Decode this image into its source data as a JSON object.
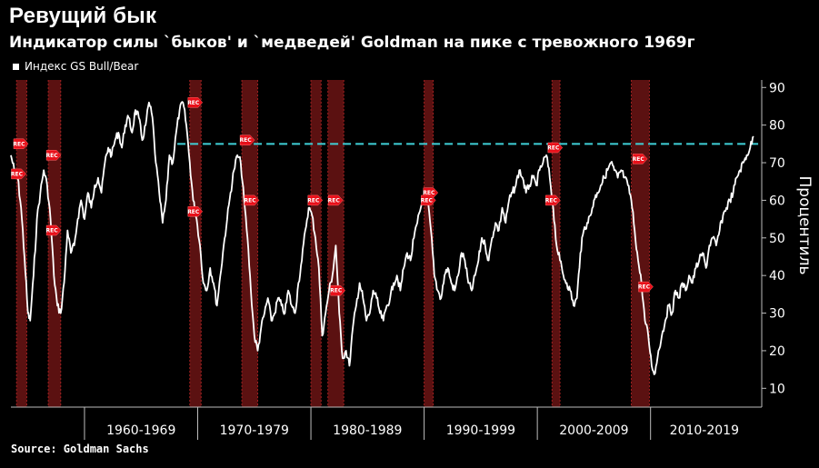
{
  "header": {
    "title": "Ревущий бык",
    "subtitle": "Индикатор силы `быков' и `медведей' Goldman на пике с тревожного 1969г"
  },
  "legend": {
    "label": "Индекс GS Bull/Bear"
  },
  "source": "Source: Goldman Sachs",
  "colors": {
    "background": "#000000",
    "series": "#ffffff",
    "recession_band": "#6b1414",
    "recession_marker": "#e8101a",
    "threshold_line": "#3fd1d8"
  },
  "chart_data": {
    "type": "line",
    "ylabel": "Процентиль",
    "ylim": [
      5,
      92
    ],
    "yticks": [
      10,
      20,
      30,
      40,
      50,
      60,
      70,
      80,
      90
    ],
    "xlim": [
      1953.0,
      2019.0
    ],
    "decades": [
      {
        "label": "1960-1969",
        "from": 1959.5,
        "to": 1969.5
      },
      {
        "label": "1970-1979",
        "from": 1969.5,
        "to": 1979.5
      },
      {
        "label": "1980-1989",
        "from": 1979.5,
        "to": 1989.5
      },
      {
        "label": "1990-1999",
        "from": 1989.5,
        "to": 1999.5
      },
      {
        "label": "2000-2009",
        "from": 1999.5,
        "to": 2009.5
      },
      {
        "label": "2010-2019",
        "from": 2009.5,
        "to": 2019.0
      }
    ],
    "threshold": {
      "value": 75,
      "x_start": 1967.7
    },
    "recessions": [
      {
        "start": 1953.5,
        "end": 1954.4
      },
      {
        "start": 1956.3,
        "end": 1957.4
      },
      {
        "start": 1968.8,
        "end": 1969.8
      },
      {
        "start": 1973.4,
        "end": 1974.8
      },
      {
        "start": 1979.5,
        "end": 1980.4
      },
      {
        "start": 1981.0,
        "end": 1982.4
      },
      {
        "start": 1989.5,
        "end": 1990.3
      },
      {
        "start": 2000.8,
        "end": 2001.5
      },
      {
        "start": 2007.8,
        "end": 2009.4
      }
    ],
    "rec_markers": [
      {
        "label": "REC",
        "x": 1953.8,
        "y": 75
      },
      {
        "label": "REC",
        "x": 1953.6,
        "y": 67
      },
      {
        "label": "REC",
        "x": 1956.7,
        "y": 72
      },
      {
        "label": "REC",
        "x": 1956.7,
        "y": 52
      },
      {
        "label": "REC",
        "x": 1969.2,
        "y": 86
      },
      {
        "label": "REC",
        "x": 1969.2,
        "y": 57
      },
      {
        "label": "REC",
        "x": 1973.8,
        "y": 76
      },
      {
        "label": "REC",
        "x": 1974.2,
        "y": 60
      },
      {
        "label": "REC",
        "x": 1979.8,
        "y": 60
      },
      {
        "label": "REC",
        "x": 1981.6,
        "y": 60
      },
      {
        "label": "REC",
        "x": 1981.8,
        "y": 36
      },
      {
        "label": "REC",
        "x": 1990.0,
        "y": 62
      },
      {
        "label": "REC",
        "x": 1989.8,
        "y": 60
      },
      {
        "label": "REC",
        "x": 2001.0,
        "y": 74
      },
      {
        "label": "REC",
        "x": 2000.8,
        "y": 60
      },
      {
        "label": "REC",
        "x": 2008.5,
        "y": 71
      },
      {
        "label": "REC",
        "x": 2009.0,
        "y": 37
      }
    ],
    "series": [
      {
        "name": "Индекс GS Bull/Bear",
        "x": [
          1953.0,
          1953.3,
          1953.6,
          1953.9,
          1954.2,
          1954.5,
          1954.7,
          1955.0,
          1955.3,
          1955.6,
          1955.9,
          1956.2,
          1956.5,
          1956.8,
          1957.1,
          1957.4,
          1957.7,
          1958.0,
          1958.3,
          1958.6,
          1958.9,
          1959.2,
          1959.5,
          1959.8,
          1960.1,
          1960.4,
          1960.7,
          1961.0,
          1961.3,
          1961.6,
          1961.9,
          1962.2,
          1962.5,
          1962.8,
          1963.1,
          1963.4,
          1963.7,
          1964.0,
          1964.3,
          1964.6,
          1964.9,
          1965.2,
          1965.5,
          1965.8,
          1966.1,
          1966.4,
          1966.7,
          1967.0,
          1967.3,
          1967.6,
          1967.9,
          1968.2,
          1968.5,
          1968.8,
          1969.1,
          1969.4,
          1969.7,
          1970.0,
          1970.3,
          1970.6,
          1970.9,
          1971.2,
          1971.5,
          1971.8,
          1972.1,
          1972.4,
          1972.7,
          1973.0,
          1973.3,
          1973.6,
          1973.9,
          1974.2,
          1974.5,
          1974.8,
          1975.1,
          1975.4,
          1975.7,
          1976.0,
          1976.3,
          1976.6,
          1976.9,
          1977.2,
          1977.5,
          1977.8,
          1978.1,
          1978.4,
          1978.7,
          1979.0,
          1979.3,
          1979.6,
          1979.9,
          1980.2,
          1980.5,
          1980.8,
          1981.1,
          1981.4,
          1981.7,
          1982.0,
          1982.3,
          1982.6,
          1982.9,
          1983.2,
          1983.5,
          1983.8,
          1984.1,
          1984.4,
          1984.7,
          1985.0,
          1985.3,
          1985.6,
          1985.9,
          1986.2,
          1986.5,
          1986.8,
          1987.1,
          1987.4,
          1987.7,
          1988.0,
          1988.3,
          1988.6,
          1988.9,
          1989.2,
          1989.5,
          1989.8,
          1990.1,
          1990.4,
          1990.7,
          1991.0,
          1991.3,
          1991.6,
          1991.9,
          1992.2,
          1992.5,
          1992.8,
          1993.1,
          1993.4,
          1993.7,
          1994.0,
          1994.3,
          1994.6,
          1994.9,
          1995.2,
          1995.5,
          1995.8,
          1996.1,
          1996.4,
          1996.7,
          1997.0,
          1997.3,
          1997.6,
          1997.9,
          1998.2,
          1998.5,
          1998.8,
          1999.1,
          1999.4,
          1999.7,
          2000.0,
          2000.3,
          2000.6,
          2000.9,
          2001.2,
          2001.5,
          2001.8,
          2002.1,
          2002.4,
          2002.7,
          2003.0,
          2003.3,
          2003.6,
          2003.9,
          2004.2,
          2004.5,
          2004.8,
          2005.1,
          2005.4,
          2005.7,
          2006.0,
          2006.3,
          2006.6,
          2006.9,
          2007.2,
          2007.5,
          2007.8,
          2008.1,
          2008.4,
          2008.7,
          2009.0,
          2009.3,
          2009.6,
          2009.9,
          2010.2,
          2010.5,
          2010.8,
          2011.1,
          2011.4,
          2011.7,
          2012.0,
          2012.3,
          2012.6,
          2012.9,
          2013.2,
          2013.5,
          2013.8,
          2014.1,
          2014.4,
          2014.7,
          2015.0,
          2015.3,
          2015.6,
          2015.9,
          2016.2,
          2016.5,
          2016.8,
          2017.1,
          2017.4,
          2017.7,
          2018.0,
          2018.3,
          2018.6
        ],
        "values": [
          72,
          68,
          66,
          58,
          45,
          30,
          28,
          40,
          55,
          62,
          68,
          64,
          55,
          40,
          32,
          30,
          38,
          52,
          46,
          48,
          55,
          60,
          55,
          62,
          58,
          64,
          66,
          62,
          70,
          74,
          72,
          76,
          78,
          74,
          80,
          82,
          78,
          84,
          82,
          76,
          80,
          86,
          82,
          70,
          62,
          54,
          60,
          72,
          70,
          78,
          84,
          86,
          80,
          70,
          60,
          55,
          48,
          38,
          36,
          42,
          38,
          32,
          40,
          48,
          55,
          62,
          68,
          72,
          70,
          60,
          50,
          36,
          24,
          20,
          26,
          30,
          34,
          28,
          30,
          34,
          32,
          30,
          36,
          32,
          30,
          38,
          44,
          52,
          58,
          56,
          50,
          42,
          24,
          30,
          36,
          40,
          48,
          30,
          18,
          20,
          16,
          26,
          32,
          38,
          34,
          28,
          30,
          36,
          34,
          30,
          28,
          32,
          34,
          38,
          40,
          36,
          42,
          46,
          44,
          50,
          54,
          58,
          62,
          60,
          52,
          40,
          36,
          34,
          40,
          42,
          38,
          36,
          40,
          46,
          44,
          38,
          36,
          40,
          44,
          50,
          48,
          44,
          50,
          54,
          52,
          58,
          54,
          60,
          62,
          64,
          68,
          66,
          62,
          64,
          66,
          64,
          68,
          70,
          72,
          66,
          58,
          48,
          44,
          40,
          38,
          36,
          32,
          34,
          46,
          52,
          54,
          56,
          60,
          62,
          64,
          66,
          68,
          70,
          68,
          66,
          68,
          66,
          64,
          60,
          52,
          44,
          38,
          28,
          24,
          16,
          14,
          20,
          24,
          28,
          32,
          30,
          36,
          34,
          38,
          36,
          40,
          38,
          42,
          44,
          46,
          42,
          48,
          50,
          48,
          52,
          56,
          58,
          60,
          62,
          66,
          68,
          70,
          72,
          74,
          77
        ]
      }
    ]
  }
}
